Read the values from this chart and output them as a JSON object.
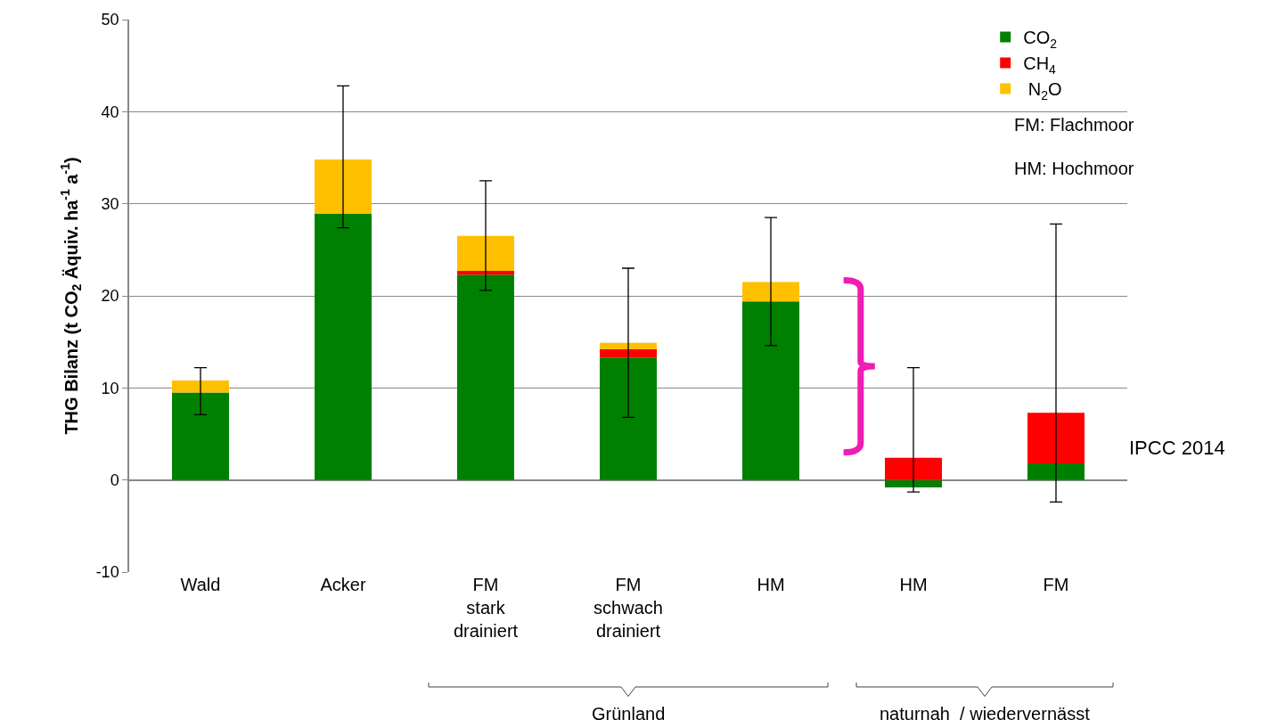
{
  "chart_data": {
    "type": "bar",
    "stacked": true,
    "ylabel": "THG Bilanz (t CO$_{2}$ Äquiv. ha$^{-1}$ a$^{-1}$)",
    "categories": [
      "Wald",
      "Acker",
      "FM\nstark\ndrainiert",
      "FM\nschwach\ndrainiert",
      "HM",
      "HM",
      "FM"
    ],
    "series": [
      {
        "name": "CO$_{2}$",
        "color": "#008000",
        "values": [
          9.5,
          28.9,
          22.3,
          13.3,
          19.4,
          -0.8,
          1.8
        ]
      },
      {
        "name": "CH$_{4}$",
        "color": "#ff0000",
        "values": [
          0,
          0,
          0.4,
          0.9,
          0,
          2.4,
          5.5
        ]
      },
      {
        "name": " N$_{2}$O",
        "color": "#ffc000",
        "values": [
          1.3,
          5.9,
          3.8,
          0.7,
          2.1,
          0,
          0
        ],
        "errors": [
          [
            7.1,
            12.2
          ],
          [
            27.4,
            42.8
          ],
          [
            20.6,
            32.5
          ],
          [
            6.8,
            23.0
          ],
          [
            14.6,
            28.5
          ],
          [
            -1.3,
            12.2
          ],
          [
            -2.4,
            27.8
          ]
        ]
      }
    ],
    "ylim": [
      -10,
      50
    ],
    "yticks": [
      -10,
      0,
      10,
      20,
      30,
      40,
      50
    ],
    "grid": "y",
    "legend": "top right",
    "annotations": [
      "FM: Flachmoor",
      "HM: Hochmoor",
      "Grünland",
      "naturnah  / wiedervernässt",
      "IPCC 2014"
    ]
  }
}
